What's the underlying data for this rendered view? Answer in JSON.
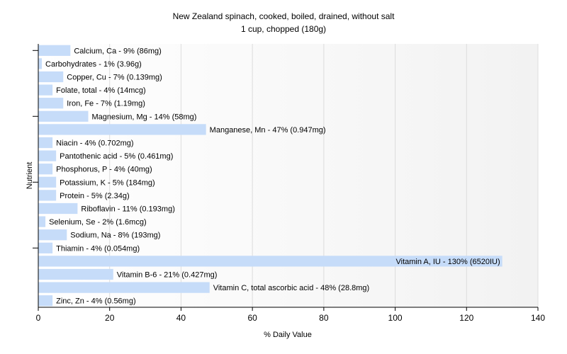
{
  "chart_data": {
    "type": "bar",
    "orientation": "horizontal",
    "title": "New Zealand spinach, cooked, boiled, drained, without salt",
    "subtitle": "1 cup, chopped (180g)",
    "xlabel": "% Daily Value",
    "ylabel": "Nutrient",
    "xlim": [
      0,
      140
    ],
    "xticks": [
      "0",
      "20",
      "40",
      "60",
      "80",
      "100",
      "120",
      "140"
    ],
    "grid": true,
    "bar_color": "#c6dcf9",
    "categories": [
      "Calcium, Ca - 9% (86mg)",
      "Carbohydrates - 1% (3.96g)",
      "Copper, Cu - 7% (0.139mg)",
      "Folate, total - 4% (14mcg)",
      "Iron, Fe - 7% (1.19mg)",
      "Magnesium, Mg - 14% (58mg)",
      "Manganese, Mn - 47% (0.947mg)",
      "Niacin - 4% (0.702mg)",
      "Pantothenic acid - 5% (0.461mg)",
      "Phosphorus, P - 4% (40mg)",
      "Potassium, K - 5% (184mg)",
      "Protein - 5% (2.34g)",
      "Riboflavin - 11% (0.193mg)",
      "Selenium, Se - 2% (1.6mcg)",
      "Sodium, Na - 8% (193mg)",
      "Thiamin - 4% (0.054mg)",
      "Vitamin A, IU - 130% (6520IU)",
      "Vitamin B-6 - 21% (0.427mg)",
      "Vitamin C, total ascorbic acid - 48% (28.8mg)",
      "Zinc, Zn - 4% (0.56mg)"
    ],
    "values": [
      9,
      1,
      7,
      4,
      7,
      14,
      47,
      4,
      5,
      4,
      5,
      5,
      11,
      2,
      8,
      4,
      130,
      21,
      48,
      4
    ]
  }
}
